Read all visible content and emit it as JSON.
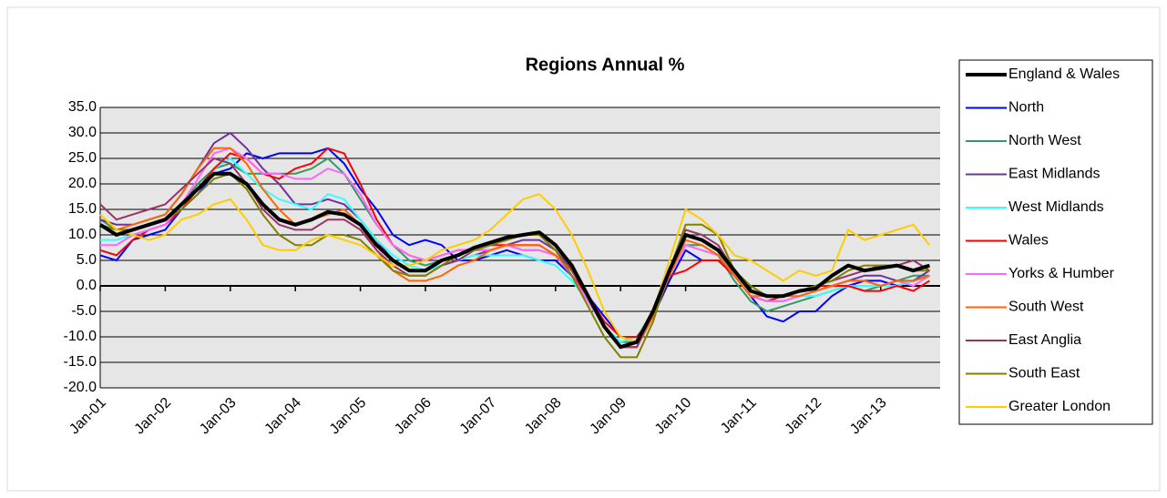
{
  "chart_data": {
    "type": "line",
    "title": "Regions Annual %",
    "categories": [
      "Jan-01",
      null,
      null,
      null,
      "Jan-02",
      null,
      null,
      null,
      "Jan-03",
      null,
      null,
      null,
      "Jan-04",
      null,
      null,
      null,
      "Jan-05",
      null,
      null,
      null,
      "Jan-06",
      null,
      null,
      null,
      "Jan-07",
      null,
      null,
      null,
      "Jan-08",
      null,
      null,
      null,
      "Jan-09",
      null,
      null,
      null,
      "Jan-10",
      null,
      null,
      null,
      "Jan-11",
      null,
      null,
      null,
      "Jan-12",
      null,
      null,
      null,
      "Jan-13",
      null,
      null,
      null
    ],
    "ylim": [
      -20,
      35
    ],
    "yticks": [
      {
        "value": -20,
        "label": "-20.0"
      },
      {
        "value": -15,
        "label": "-15.0"
      },
      {
        "value": -10,
        "label": "-10.0"
      },
      {
        "value": -5,
        "label": "-5.0"
      },
      {
        "value": 0,
        "label": "0.0"
      },
      {
        "value": 5,
        "label": "5.0"
      },
      {
        "value": 10,
        "label": "10.0"
      },
      {
        "value": 15,
        "label": "15.0"
      },
      {
        "value": 20,
        "label": "20.0"
      },
      {
        "value": 25,
        "label": "25.0"
      },
      {
        "value": 30,
        "label": "30.0"
      },
      {
        "value": 35,
        "label": "35.0"
      }
    ],
    "grid": true,
    "legend": "right",
    "series": [
      {
        "name": "England & Wales",
        "color": "#000000",
        "values": [
          12,
          10,
          11,
          12,
          13,
          16,
          19,
          22,
          22,
          20,
          16,
          13,
          12,
          13,
          14.5,
          14,
          12,
          8,
          5,
          3,
          3,
          5,
          6,
          7.5,
          8.5,
          9.5,
          10,
          10.5,
          8,
          4,
          -2,
          -8,
          -12,
          -11,
          -5,
          3,
          10,
          9,
          7,
          3,
          -1,
          -2,
          -2,
          -1,
          -0.5,
          2,
          4,
          3,
          3.5,
          4,
          3,
          4
        ]
      },
      {
        "name": "North",
        "color": "#0000ff",
        "values": [
          6,
          5,
          9,
          10,
          11,
          15,
          18,
          22,
          23,
          26,
          25,
          26,
          26,
          26,
          27,
          24,
          19,
          15,
          10,
          8,
          9,
          8,
          5,
          5,
          6,
          7,
          6,
          5,
          5,
          2,
          -2,
          -6,
          -10,
          -10,
          -6,
          1,
          7,
          5,
          5,
          2,
          -2,
          -6,
          -7,
          -5,
          -5,
          -2,
          0,
          1,
          1,
          0,
          1,
          2
        ]
      },
      {
        "name": "North West",
        "color": "#339966",
        "values": [
          13,
          11,
          11,
          12,
          13,
          16,
          20,
          23,
          24,
          22,
          22,
          22,
          22,
          23,
          25,
          22,
          17,
          12,
          8,
          5,
          4,
          5,
          6,
          7,
          7,
          8,
          7,
          7,
          6,
          2,
          -3,
          -8,
          -11,
          -11,
          -6,
          2,
          8,
          8,
          6,
          1,
          -3,
          -5,
          -4,
          -3,
          -2,
          -1,
          0,
          -1,
          0,
          1,
          2,
          2
        ]
      },
      {
        "name": "East Midlands",
        "color": "#7030a0",
        "values": [
          13,
          12,
          12,
          13,
          14,
          18,
          23,
          28,
          30,
          27,
          23,
          20,
          16,
          16,
          17,
          16,
          13,
          9,
          5,
          3,
          3,
          4,
          5,
          6,
          7,
          8,
          9,
          9,
          7,
          3,
          -2,
          -8,
          -12,
          -12,
          -6,
          2,
          10,
          9,
          7,
          2,
          -2,
          -3,
          -3,
          -2,
          -1,
          0,
          1,
          2,
          2,
          1,
          1,
          3
        ]
      },
      {
        "name": "West Midlands",
        "color": "#33ffff",
        "values": [
          9,
          9,
          10,
          11,
          12,
          15,
          19,
          23,
          25,
          22,
          19,
          17,
          16,
          15,
          18,
          17,
          13,
          9,
          6,
          4,
          3,
          4,
          5,
          6,
          6,
          6,
          6,
          5,
          4,
          1,
          -3,
          -8,
          -11,
          -10,
          -5,
          3,
          8,
          7,
          6,
          3,
          -2,
          -3,
          -3,
          -2,
          -2,
          -1,
          0,
          0,
          0,
          0,
          1,
          2
        ]
      },
      {
        "name": "Wales",
        "color": "#ff0000",
        "values": [
          7,
          6,
          9,
          11,
          12,
          15,
          19,
          23,
          26,
          25,
          22,
          21,
          23,
          24,
          27,
          26,
          20,
          13,
          8,
          6,
          5,
          6,
          7,
          7,
          8,
          8,
          8,
          8,
          6,
          2,
          -2,
          -7,
          -10,
          -10,
          -6,
          2,
          3,
          5,
          5,
          2,
          -2,
          -3,
          -2,
          -1,
          0,
          0,
          0,
          -1,
          -1,
          0,
          -1,
          1
        ]
      },
      {
        "name": "Yorks & Humber",
        "color": "#ff66ff",
        "values": [
          8,
          8,
          10,
          11,
          12,
          16,
          21,
          26,
          27,
          25,
          22,
          22,
          21,
          21,
          23,
          22,
          18,
          12,
          8,
          6,
          5,
          6,
          7,
          7,
          7,
          8,
          7,
          7,
          6,
          2,
          -3,
          -8,
          -12,
          -11,
          -5,
          2,
          8,
          7,
          6,
          2,
          -2,
          -3,
          -3,
          -2,
          -1,
          0,
          1,
          1,
          0,
          1,
          0,
          2
        ]
      },
      {
        "name": "South West",
        "color": "#ff6600",
        "values": [
          12,
          11,
          12,
          13,
          14,
          18,
          23,
          27,
          27,
          24,
          19,
          15,
          12,
          13,
          14,
          15,
          12,
          7,
          3,
          1,
          1,
          2,
          4,
          5,
          7,
          8,
          8,
          8,
          6,
          3,
          -2,
          -8,
          -12,
          -12,
          -6,
          2,
          9,
          8,
          6,
          2,
          -2,
          -2,
          -2,
          -2,
          -1,
          0,
          1,
          1,
          0,
          1,
          1,
          2
        ]
      },
      {
        "name": "East Anglia",
        "color": "#993366",
        "values": [
          16,
          13,
          14,
          15,
          16,
          19,
          22,
          25,
          24,
          20,
          15,
          12,
          11,
          11,
          13,
          13,
          11,
          7,
          4,
          2,
          2,
          4,
          5,
          7,
          8,
          9,
          10,
          10,
          8,
          3,
          -2,
          -8,
          -12,
          -12,
          -5,
          3,
          11,
          10,
          8,
          3,
          -1,
          -2,
          -2,
          -1,
          0,
          1,
          2,
          3,
          4,
          4,
          5,
          3
        ]
      },
      {
        "name": "South East",
        "color": "#808000",
        "values": [
          12,
          11,
          11,
          12,
          13,
          15,
          18,
          21,
          22,
          19,
          14,
          10,
          8,
          8,
          10,
          10,
          9,
          6,
          3,
          2,
          2,
          4,
          6,
          7,
          8,
          9,
          10,
          10,
          7,
          2,
          -4,
          -10,
          -14,
          -14,
          -7,
          3,
          12,
          12,
          10,
          3,
          0,
          -2,
          -2,
          -1,
          0,
          1,
          3,
          4,
          4,
          4,
          3,
          3
        ]
      },
      {
        "name": "Greater London",
        "color": "#ffcc00",
        "values": [
          14,
          11,
          10,
          9,
          10,
          13,
          14,
          16,
          17,
          13,
          8,
          7,
          7,
          9,
          10,
          9,
          8,
          6,
          4,
          4,
          5,
          7,
          8,
          9,
          11,
          14,
          17,
          18,
          15,
          10,
          3,
          -5,
          -10,
          -11,
          -5,
          5,
          15,
          13,
          10,
          6,
          5,
          3,
          1,
          3,
          2,
          3,
          11,
          9,
          10,
          11,
          12,
          8
        ]
      }
    ]
  }
}
